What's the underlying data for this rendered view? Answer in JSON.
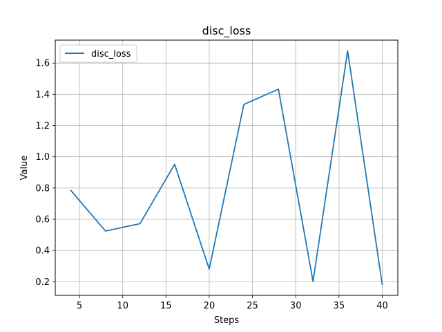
{
  "chart_data": {
    "type": "line",
    "title": "disc_loss",
    "xlabel": "Steps",
    "ylabel": "Value",
    "xlim": [
      2.2,
      41.8
    ],
    "ylim": [
      0.113,
      1.747
    ],
    "xticks": [
      5,
      10,
      15,
      20,
      25,
      30,
      35,
      40
    ],
    "yticks": [
      0.2,
      0.4,
      0.6,
      0.8,
      1.0,
      1.2,
      1.4,
      1.6
    ],
    "xtick_labels": [
      "5",
      "10",
      "15",
      "20",
      "25",
      "30",
      "35",
      "40"
    ],
    "ytick_labels": [
      "0.2",
      "0.4",
      "0.6",
      "0.8",
      "1.0",
      "1.2",
      "1.4",
      "1.6"
    ],
    "grid": true,
    "legend_position": "upper-left",
    "series": [
      {
        "name": "disc_loss",
        "color": "#1f77b4",
        "x": [
          4,
          8,
          12,
          16,
          20,
          24,
          28,
          32,
          36,
          40
        ],
        "y": [
          0.785,
          0.525,
          0.572,
          0.952,
          0.281,
          1.335,
          1.433,
          0.202,
          1.678,
          0.183
        ]
      }
    ]
  }
}
